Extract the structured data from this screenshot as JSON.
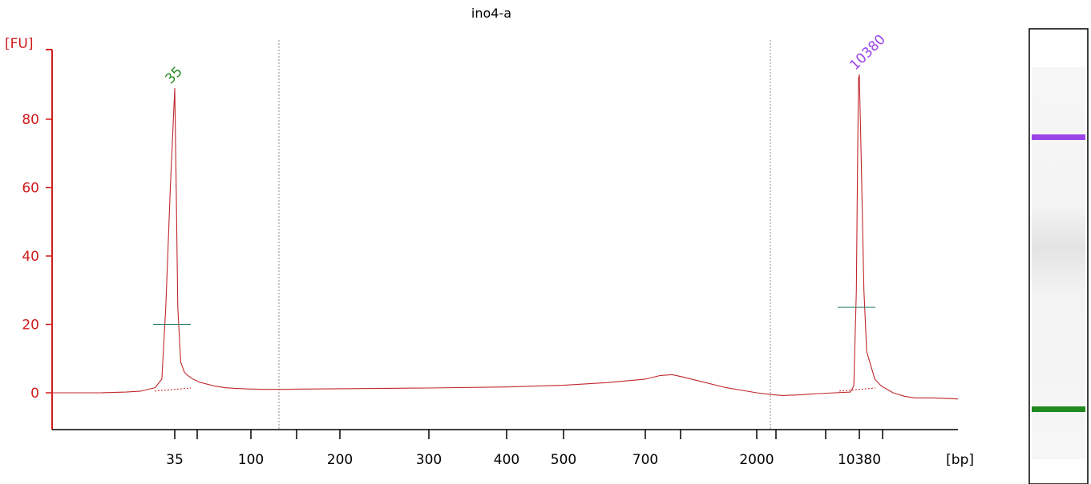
{
  "chart_data": {
    "type": "line",
    "title": "ino4-a",
    "ylabel": "[FU]",
    "xlabel": "[bp]",
    "ylim": [
      -11,
      104
    ],
    "y_ticks": [
      0,
      20,
      40,
      60,
      80
    ],
    "x_tick_labels": [
      "35",
      "100",
      "200",
      "300",
      "400",
      "500",
      "700",
      "2000",
      "10380"
    ],
    "x_major_ticks_bp": [
      35,
      100,
      200,
      300,
      400,
      500,
      700,
      2000,
      10380
    ],
    "x_minor_ticks_bp": [
      50,
      150,
      1000,
      1500,
      3000,
      7000
    ],
    "region_markers_bp": [
      130,
      3000
    ],
    "series": [
      {
        "color": "#c0282d",
        "x": [
          20,
          25,
          28,
          30,
          32,
          33,
          33.6,
          34.3,
          35,
          35.7,
          36.5,
          38,
          40,
          42,
          45,
          50,
          55,
          60,
          70,
          80,
          90,
          100,
          110,
          120,
          130,
          150,
          200,
          300,
          400,
          500,
          600,
          700,
          800,
          900,
          1000,
          1200,
          1500,
          2000,
          2500,
          3000,
          4000,
          5000,
          7000,
          9000,
          9500,
          9900,
          10100,
          10250,
          10380,
          10500,
          10700,
          10900,
          11200,
          11500,
          12000,
          13000,
          14000,
          15000,
          17000,
          20000
        ],
        "y": [
          0,
          0,
          0.2,
          0.5,
          1.5,
          4,
          25,
          60,
          89,
          60,
          25,
          9,
          6,
          5,
          4,
          3,
          2.5,
          2,
          1.5,
          1.3,
          1.2,
          1.1,
          1.0,
          1.0,
          1.0,
          1.1,
          1.2,
          1.4,
          1.7,
          2.2,
          3.0,
          4.0,
          5.0,
          5.3,
          4.6,
          3.2,
          1.5,
          0,
          -0.5,
          -0.8,
          -0.6,
          -0.3,
          0,
          0.2,
          2,
          30,
          70,
          92,
          93,
          70,
          30,
          12,
          8,
          4,
          2,
          0,
          -1,
          -1.5,
          -1.5,
          -1.8
        ]
      }
    ],
    "peaks": [
      {
        "label": "35",
        "x": 35,
        "y": 89,
        "color": "#238a23",
        "marker_level": 20
      },
      {
        "label": "10380",
        "x": 10380,
        "y": 93,
        "color": "#9b44e8",
        "marker_level": 25
      }
    ]
  },
  "gel_lane": {
    "bands": [
      {
        "label": "10380",
        "color": "#9b44e8"
      },
      {
        "label": "35",
        "color": "#1f8a1f"
      }
    ]
  }
}
